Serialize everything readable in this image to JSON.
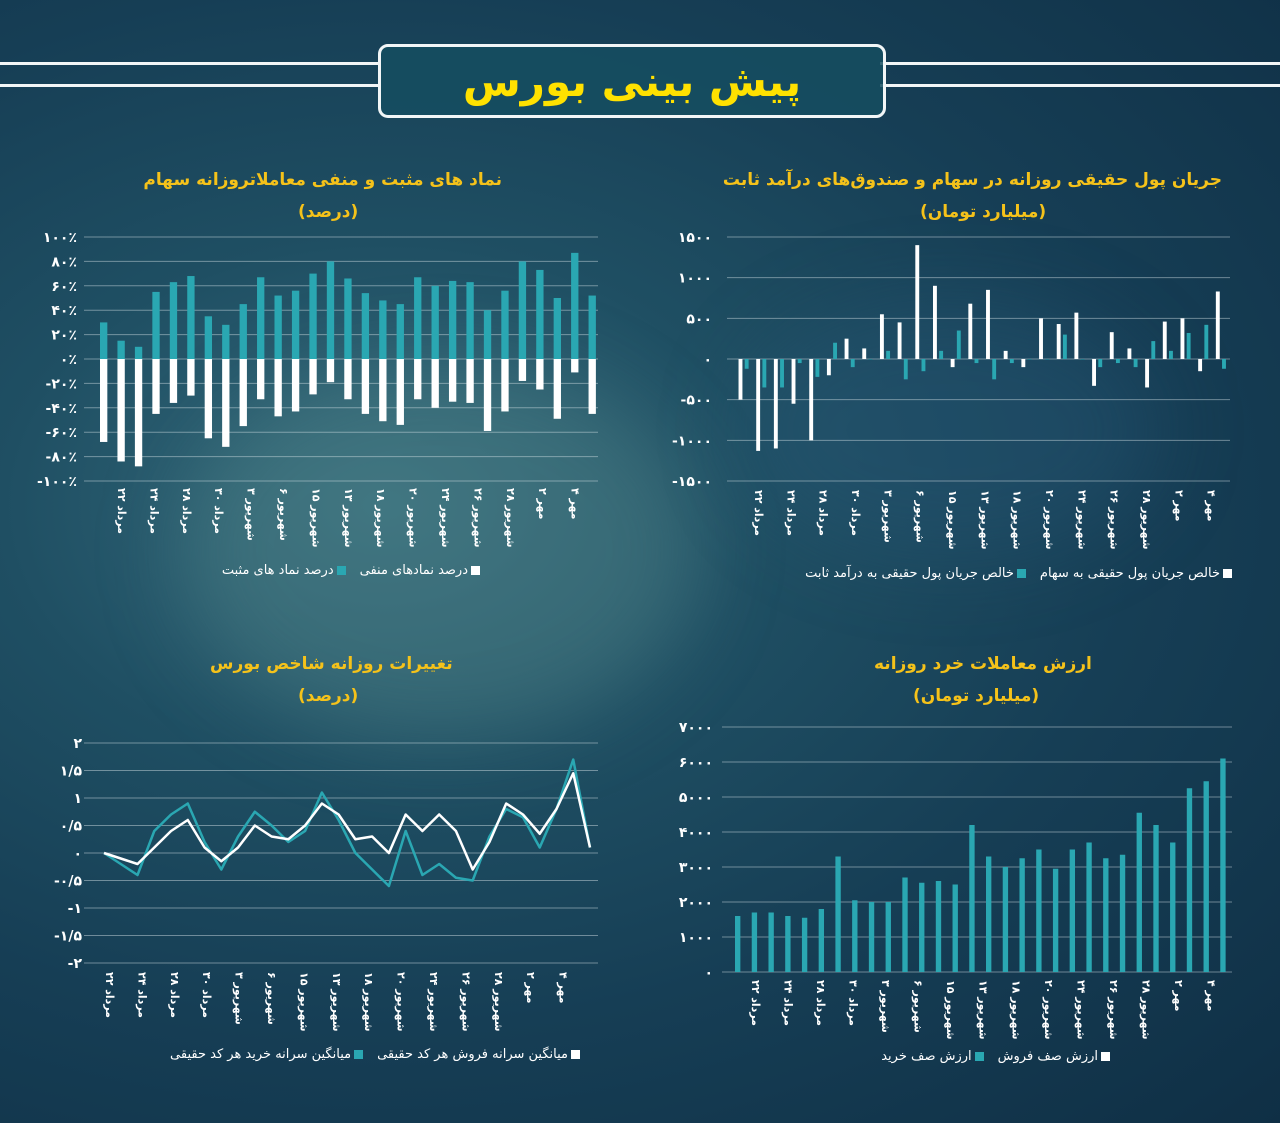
{
  "header": {
    "title": "پیش بینی بورس"
  },
  "colors": {
    "teal": "#2aa7b2",
    "white": "#ffffff",
    "title": "#f5c21a",
    "header_title": "#ffe100"
  },
  "date_labels": [
    "۲۲ مرداد",
    "۲۴ مرداد",
    "۲۸ مرداد",
    "۳۰ مرداد",
    "۳ شهریور",
    "۶ شهریور",
    "۱۵ شهریور",
    "۱۳ شهریور",
    "۱۸ شهریور",
    "۲۰ شهریور",
    "۲۴ شهریور",
    "۲۶ شهریور",
    "۲۸ شهریور",
    "۲ مهر",
    "۴ مهر"
  ],
  "chart_data": [
    {
      "id": "flow",
      "type": "bar",
      "title": "جریان پول حقیقی روزانه در سهام و صندوق‌های درآمد ثابت",
      "subtitle": "(میلیارد تومان)",
      "ylim": [
        -1500,
        1500
      ],
      "y_ticks": [
        1500,
        1000,
        500,
        0,
        -500,
        -1000,
        -1500
      ],
      "y_tick_labels": [
        "۱۵۰۰",
        "۱۰۰۰",
        "۵۰۰",
        "۰",
        "-۵۰۰",
        "-۱۰۰۰",
        "-۱۵۰۰"
      ],
      "series": [
        {
          "name": "خالص جریان پول حقیقی به سهام",
          "color": "#ffffff",
          "values": [
            -500,
            -1130,
            -1100,
            -550,
            -1000,
            -200,
            250,
            130,
            550,
            450,
            1400,
            900,
            -100,
            680,
            850,
            100,
            -100,
            500,
            430,
            570,
            -330,
            330,
            130,
            -350,
            460,
            500,
            -150,
            830
          ]
        },
        {
          "name": "خالص جریان پول حقیقی به درآمد ثابت",
          "color": "#2aa7b2",
          "values": [
            -120,
            -350,
            -350,
            -50,
            -220,
            200,
            -100,
            0,
            100,
            -250,
            -150,
            100,
            350,
            -50,
            -250,
            -50,
            0,
            0,
            300,
            0,
            -100,
            -50,
            -100,
            220,
            100,
            320,
            420,
            -120
          ]
        }
      ],
      "legend": [
        "خالص جریان پول حقیقی به سهام",
        "خالص جریان پول حقیقی به درآمد ثابت"
      ]
    },
    {
      "id": "symbols",
      "type": "bar",
      "title": "نماد های مثبت و منفی معاملاتروزانه سهام",
      "subtitle": "(درصد)",
      "ylim": [
        -100,
        100
      ],
      "y_ticks": [
        100,
        80,
        60,
        40,
        20,
        0,
        -20,
        -40,
        -60,
        -80,
        -100
      ],
      "y_tick_labels": [
        "۱۰۰٪",
        "۸۰٪",
        "۶۰٪",
        "۴۰٪",
        "۲۰٪",
        "۰٪",
        "-۲۰٪",
        "-۴۰٪",
        "-۶۰٪",
        "-۸۰٪",
        "-۱۰۰٪"
      ],
      "series": [
        {
          "name": "درصد نماد های مثبت",
          "color": "#2aa7b2",
          "values": [
            30,
            15,
            10,
            55,
            63,
            68,
            35,
            28,
            45,
            67,
            52,
            56,
            70,
            80,
            66,
            54,
            48,
            45,
            67,
            60,
            64,
            63,
            40,
            56,
            80,
            73,
            50,
            87,
            52
          ]
        },
        {
          "name": "درصد نمادهای منفی",
          "color": "#ffffff",
          "values": [
            -68,
            -84,
            -88,
            -45,
            -36,
            -30,
            -65,
            -72,
            -55,
            -33,
            -47,
            -43,
            -29,
            -19,
            -33,
            -45,
            -51,
            -54,
            -33,
            -40,
            -35,
            -36,
            -59,
            -43,
            -18,
            -25,
            -49,
            -11,
            -45
          ]
        }
      ],
      "legend": [
        "درصد نمادهای منفی",
        "درصد نماد های مثبت"
      ]
    },
    {
      "id": "retail",
      "type": "bar",
      "title": "ارزش معاملات خرد روزانه",
      "subtitle": "(میلیارد تومان)",
      "ylim": [
        0,
        7000
      ],
      "y_ticks": [
        7000,
        6000,
        5000,
        4000,
        3000,
        2000,
        1000,
        0
      ],
      "y_tick_labels": [
        "۷۰۰۰",
        "۶۰۰۰",
        "۵۰۰۰",
        "۴۰۰۰",
        "۳۰۰۰",
        "۲۰۰۰",
        "۱۰۰۰",
        "۰"
      ],
      "series": [
        {
          "name": "ارزش صف خرید",
          "color": "#2aa7b2",
          "values": [
            1600,
            1700,
            1700,
            1600,
            1550,
            1800,
            3300,
            2050,
            2000,
            2000,
            2700,
            2550,
            2600,
            2500,
            4200,
            3300,
            3000,
            3250,
            3500,
            2950,
            3500,
            3700,
            3250,
            3350,
            4550,
            4200,
            3700,
            5250,
            5450,
            6100
          ]
        },
        {
          "name": "ارزش صف فروش",
          "color": "#ffffff",
          "values": []
        }
      ],
      "legend": [
        "ارزش صف فروش",
        "ارزش صف خرید"
      ]
    },
    {
      "id": "index",
      "type": "line",
      "title": "تغییرات روزانه شاخص بورس",
      "subtitle": "(درصد)",
      "ylim": [
        -2,
        2
      ],
      "y_ticks": [
        2,
        1.5,
        1,
        0.5,
        0,
        -0.5,
        -1,
        -1.5,
        -2
      ],
      "y_tick_labels": [
        "۲",
        "۱/۵",
        "۱",
        "۰/۵",
        "۰",
        "-۰/۵",
        "-۱",
        "-۱/۵",
        "-۲"
      ],
      "series": [
        {
          "name": "میانگین سرانه خرید هر کد حقیقی",
          "color": "#2aa7b2",
          "values": [
            0,
            -0.2,
            -0.4,
            0.4,
            0.7,
            0.9,
            0.2,
            -0.3,
            0.3,
            0.75,
            0.5,
            0.2,
            0.4,
            1.1,
            0.6,
            0,
            -0.3,
            -0.6,
            0.4,
            -0.4,
            -0.2,
            -0.45,
            -0.5,
            0.3,
            0.8,
            0.65,
            0.1,
            0.8,
            1.7,
            0.1
          ]
        },
        {
          "name": "میانگین سرانه فروش هر کد حقیقی",
          "color": "#ffffff",
          "values": [
            0,
            -0.1,
            -0.2,
            0.1,
            0.4,
            0.6,
            0.1,
            -0.15,
            0.1,
            0.5,
            0.3,
            0.25,
            0.5,
            0.9,
            0.7,
            0.25,
            0.3,
            0,
            0.7,
            0.4,
            0.7,
            0.4,
            -0.3,
            0.2,
            0.9,
            0.7,
            0.35,
            0.8,
            1.45,
            0.1
          ]
        }
      ],
      "legend": [
        "میانگین سرانه فروش هر کد حقیقی",
        "میانگین سرانه خرید هر کد حقیقی"
      ]
    }
  ]
}
